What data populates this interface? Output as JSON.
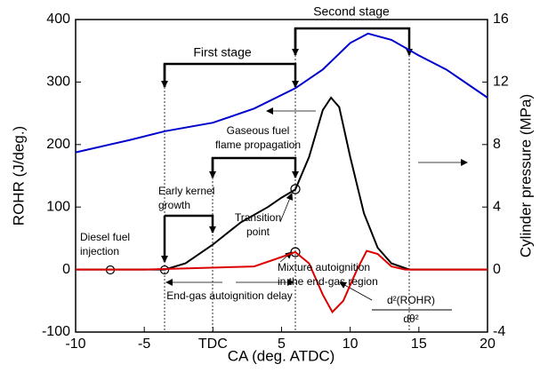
{
  "chart_data": {
    "type": "line",
    "xlabel": "CA (deg. ATDC)",
    "ylabel": "ROHR (J/deg.)",
    "y2label": "Cylinder pressure (MPa)",
    "xlim": [
      -10,
      20
    ],
    "xticks": [
      -10,
      -5,
      {
        "value": 0,
        "label": "TDC"
      },
      5,
      10,
      15,
      20
    ],
    "ylim": [
      -100,
      400
    ],
    "yticks": [
      -100,
      0,
      100,
      200,
      300,
      400
    ],
    "y2lim": [
      -4,
      16
    ],
    "y2ticks": [
      -4,
      0,
      4,
      8,
      12,
      16
    ],
    "series": [
      {
        "color": "#0000cc",
        "axis": "y2",
        "x": [
          -10,
          -6,
          -3.5,
          0,
          3,
          6,
          8,
          10,
          11.3,
          13,
          15,
          17,
          20
        ],
        "values": [
          7.5,
          8.3,
          8.85,
          9.4,
          10.3,
          11.6,
          12.8,
          14.5,
          15.1,
          14.7,
          13.7,
          12.8,
          11.0
        ]
      },
      {
        "color": "#000000",
        "x": [
          -10,
          -3.5,
          -2,
          0,
          2,
          4,
          5,
          6,
          7,
          8,
          8.6,
          9.2,
          10,
          11,
          12,
          13,
          14.3,
          20
        ],
        "values": [
          0,
          0,
          10,
          40,
          75,
          100,
          115,
          128,
          180,
          255,
          275,
          260,
          180,
          90,
          35,
          10,
          0,
          0
        ]
      },
      {
        "color": "#dd0000",
        "x": [
          -10,
          -5,
          3,
          5,
          6,
          7,
          8,
          8.7,
          9.5,
          10.5,
          11.2,
          12,
          13,
          14,
          20
        ],
        "values": [
          0,
          0,
          5,
          20,
          28,
          10,
          -40,
          -68,
          -50,
          0,
          30,
          25,
          5,
          0,
          0
        ]
      }
    ],
    "annotations": [
      {
        "lines": [
          "Second stage"
        ]
      },
      {
        "lines": [
          "First stage"
        ]
      },
      {
        "lines": [
          "Gaseous fuel",
          "flame propagation"
        ]
      },
      {
        "lines": [
          "Transition",
          "point"
        ]
      },
      {
        "lines": [
          "Early kernel",
          "growth"
        ]
      },
      {
        "lines": [
          "Diesel fuel",
          "injection"
        ]
      },
      {
        "lines": [
          "Mixture autoignition",
          "in the end-gas region"
        ]
      },
      {
        "lines": [
          "End-gas autoignition delay"
        ]
      },
      {
        "lines": [
          "d²(ROHR)",
          "dθ²"
        ]
      }
    ]
  }
}
